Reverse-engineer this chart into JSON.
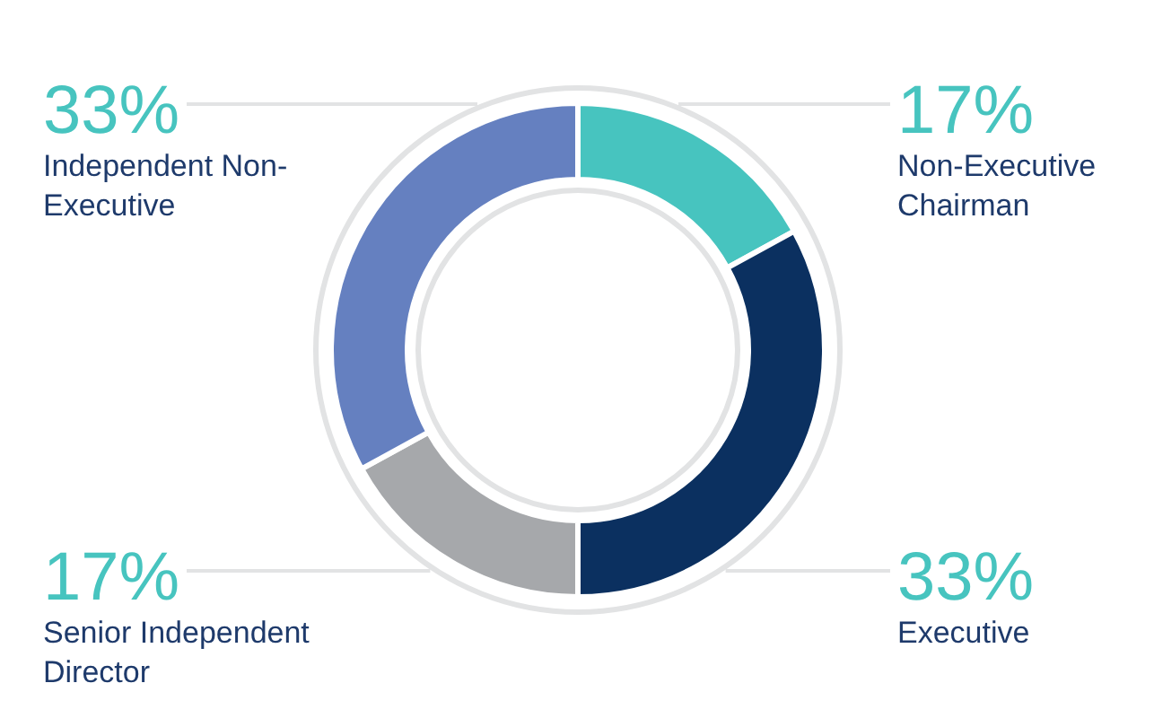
{
  "chart_data": {
    "type": "donut",
    "categories": [
      "Non-Executive Chairman",
      "Executive",
      "Senior Independent Director",
      "Independent Non-Executive"
    ],
    "values": [
      17,
      33,
      17,
      33
    ],
    "colors": [
      "#47c4bf",
      "#0b3060",
      "#a6a8ab",
      "#6580c0"
    ],
    "value_labels": [
      "17%",
      "33%",
      "17%",
      "33%"
    ]
  }
}
